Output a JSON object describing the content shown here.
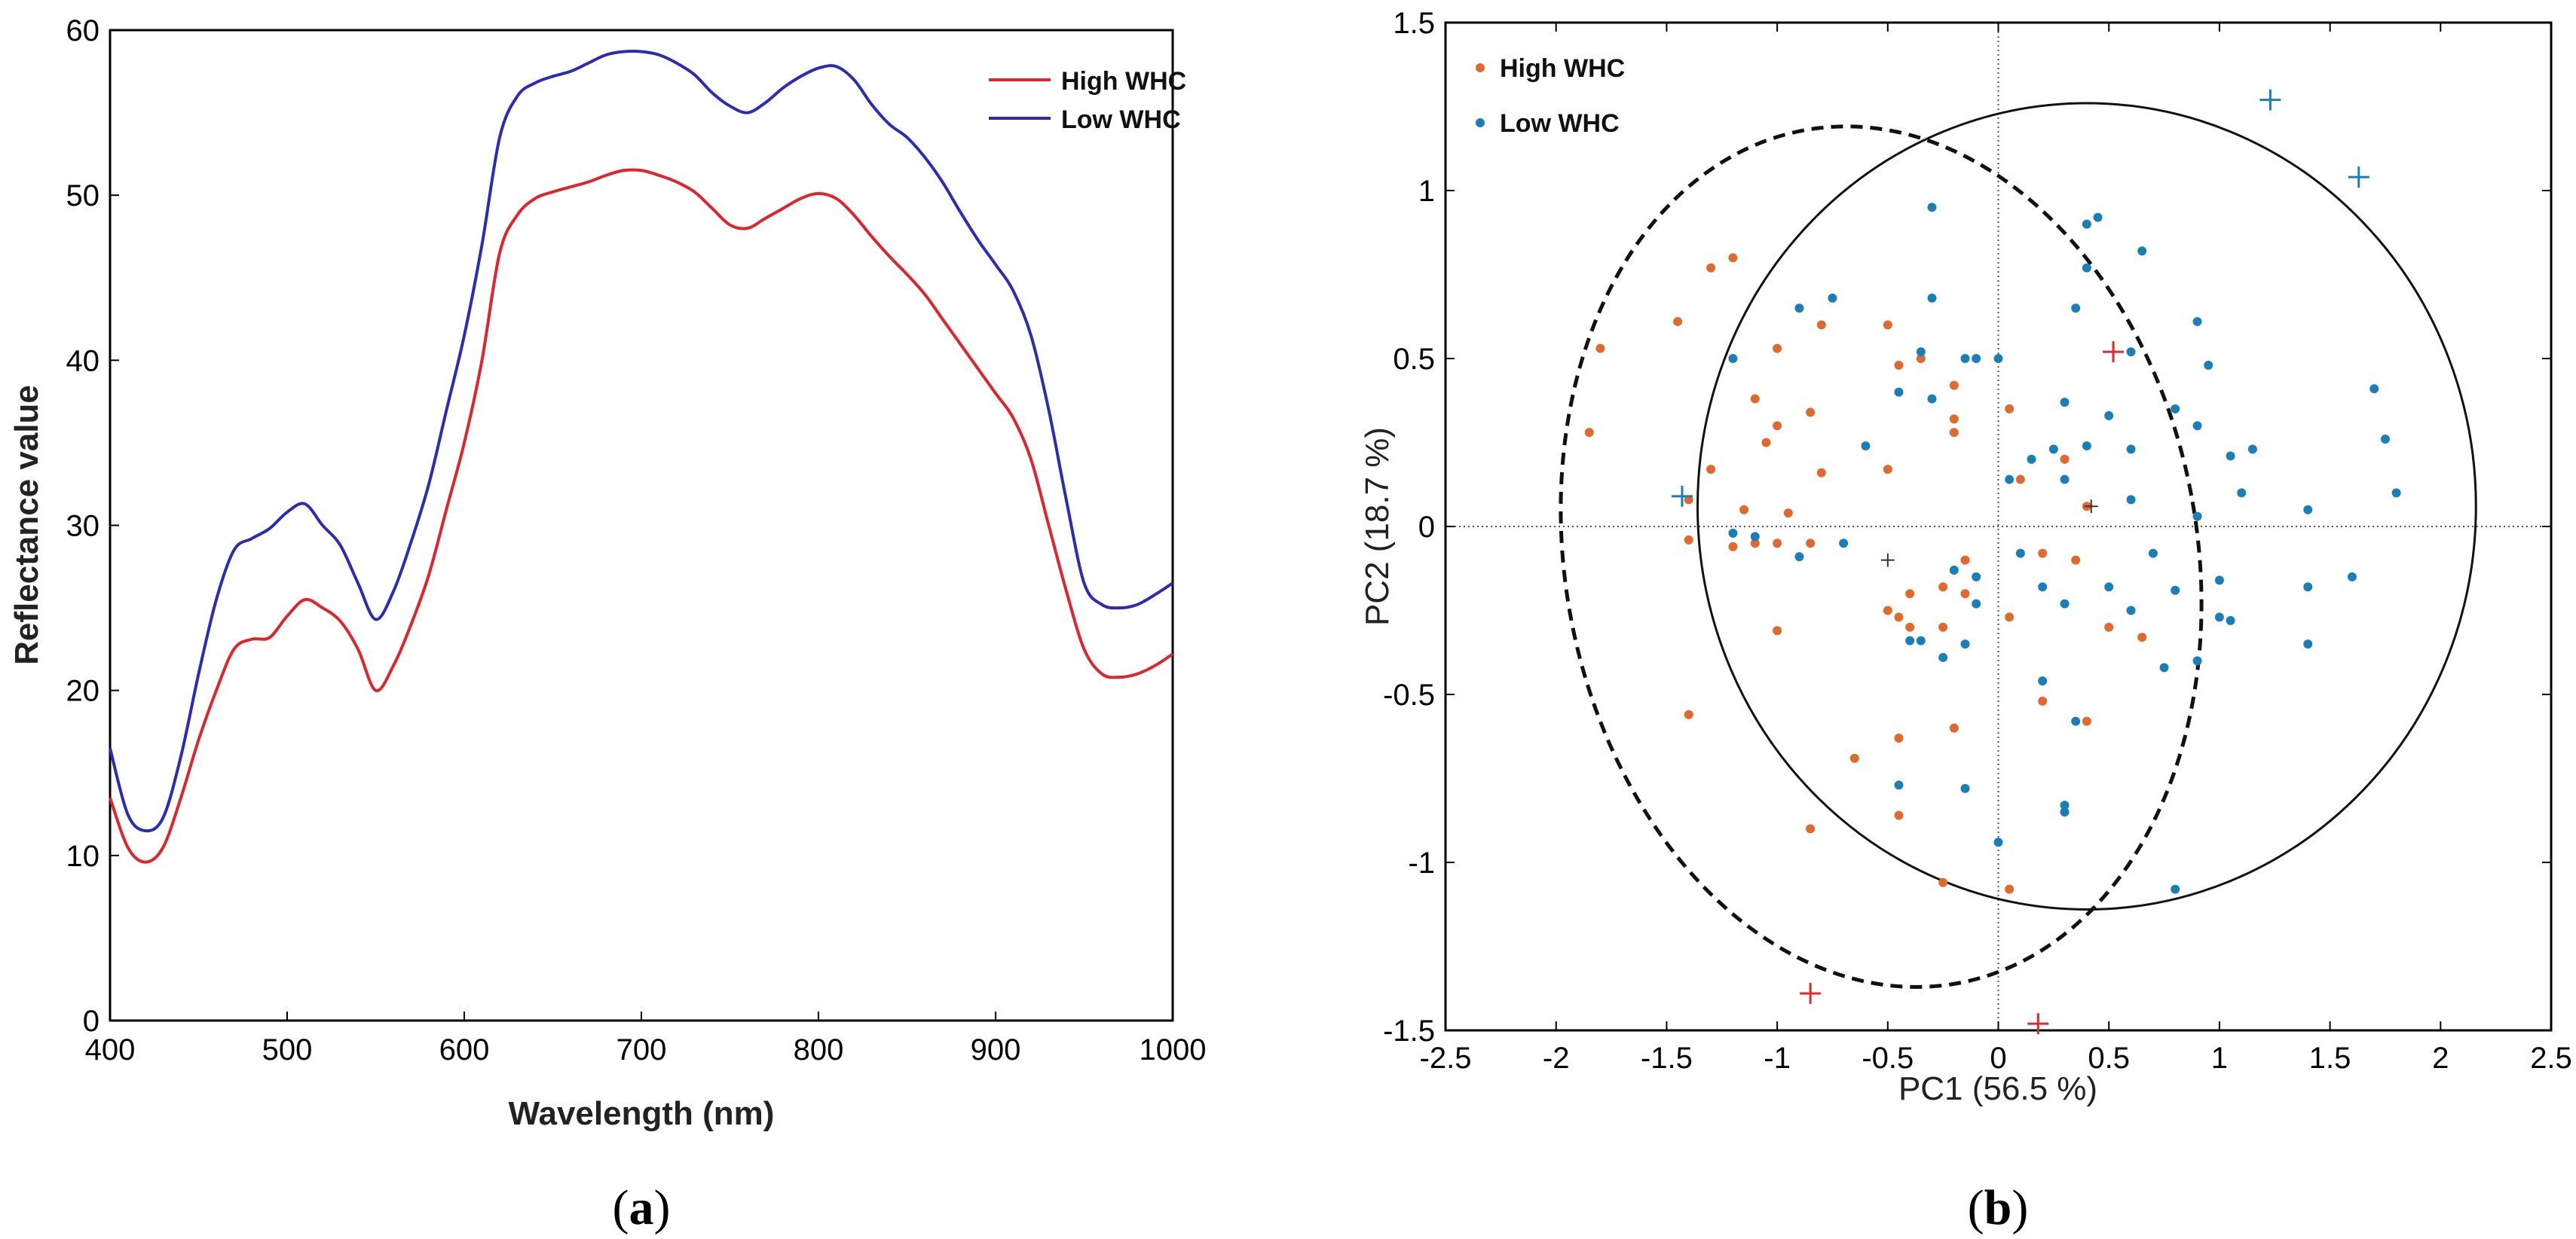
{
  "chart_data": [
    {
      "panel_label": "a",
      "type": "line",
      "title": "",
      "xlabel": "Wavelength (nm)",
      "ylabel": "Reflectance value",
      "xlim": [
        400,
        1000
      ],
      "ylim": [
        0,
        60
      ],
      "xticks": [
        400,
        500,
        600,
        700,
        800,
        900,
        1000
      ],
      "yticks": [
        0,
        10,
        20,
        30,
        40,
        50,
        60
      ],
      "legend": "top-right",
      "series": [
        {
          "name": "High WHC",
          "color": "#e0242b",
          "x": [
            400,
            410,
            420,
            430,
            440,
            450,
            460,
            470,
            480,
            490,
            500,
            510,
            520,
            530,
            540,
            550,
            560,
            570,
            580,
            590,
            600,
            610,
            620,
            630,
            640,
            650,
            660,
            670,
            680,
            690,
            700,
            710,
            720,
            730,
            740,
            750,
            760,
            770,
            780,
            790,
            800,
            810,
            820,
            830,
            840,
            850,
            860,
            870,
            880,
            890,
            900,
            910,
            920,
            930,
            940,
            950,
            960,
            970,
            980,
            990,
            1000
          ],
          "y": [
            13.5,
            10.5,
            9.6,
            10.5,
            13.5,
            17,
            20,
            22.5,
            23.1,
            23.2,
            24.5,
            25.5,
            25.0,
            24.2,
            22.5,
            20.0,
            21.5,
            24.0,
            27.0,
            31.0,
            35.0,
            40.0,
            46.5,
            48.8,
            49.8,
            50.2,
            50.5,
            50.8,
            51.2,
            51.5,
            51.5,
            51.2,
            50.8,
            50.2,
            49.2,
            48.2,
            48.0,
            48.6,
            49.2,
            49.8,
            50.1,
            49.8,
            48.8,
            47.5,
            46.3,
            45.2,
            44.0,
            42.5,
            41.0,
            39.5,
            38.0,
            36.5,
            34.0,
            30.0,
            26.0,
            22.5,
            21.0,
            20.8,
            21.0,
            21.5,
            22.2
          ]
        },
        {
          "name": "Low WHC",
          "color": "#2b2bb8",
          "x": [
            400,
            410,
            420,
            430,
            440,
            450,
            460,
            470,
            480,
            490,
            500,
            510,
            520,
            530,
            540,
            550,
            560,
            570,
            580,
            590,
            600,
            610,
            620,
            630,
            640,
            650,
            660,
            670,
            680,
            690,
            700,
            710,
            720,
            730,
            740,
            750,
            760,
            770,
            780,
            790,
            800,
            810,
            820,
            830,
            840,
            850,
            860,
            870,
            880,
            890,
            900,
            910,
            920,
            930,
            940,
            950,
            960,
            970,
            980,
            990,
            1000
          ],
          "y": [
            16.5,
            12.5,
            11.5,
            12.3,
            16.0,
            21.0,
            25.5,
            28.5,
            29.2,
            29.8,
            30.8,
            31.3,
            30.0,
            28.8,
            26.5,
            24.3,
            26.0,
            29.0,
            32.5,
            37.0,
            41.5,
            47.0,
            53.5,
            56.0,
            56.8,
            57.2,
            57.5,
            58.0,
            58.5,
            58.7,
            58.7,
            58.5,
            58.0,
            57.3,
            56.2,
            55.4,
            55.0,
            55.6,
            56.5,
            57.2,
            57.7,
            57.8,
            57.0,
            55.5,
            54.3,
            53.5,
            52.3,
            50.8,
            49.0,
            47.3,
            45.8,
            44.2,
            41.5,
            37.0,
            31.5,
            26.5,
            25.2,
            25.0,
            25.2,
            25.8,
            26.5
          ]
        }
      ]
    },
    {
      "panel_label": "b",
      "type": "scatter",
      "title": "",
      "xlabel": "PC1 (56.5 %)",
      "ylabel": "PC2 (18.7 %)",
      "xlim": [
        -2.5,
        2.5
      ],
      "ylim": [
        -1.5,
        1.5
      ],
      "xticks": [
        "-2.5",
        "-2",
        "-1.5",
        "-1",
        "-0.5",
        "0",
        "0.5",
        "1",
        "1.5",
        "2",
        "2.5"
      ],
      "yticks": [
        "-1.5",
        "-1",
        "-0.5",
        "0",
        "0.5",
        "1",
        "1.5"
      ],
      "legend": "top-left",
      "series": [
        {
          "name": "High WHC",
          "color": "#e06a2e",
          "points": [
            [
              -1.3,
              0.77
            ],
            [
              -1.2,
              0.8
            ],
            [
              -1.45,
              0.61
            ],
            [
              -1.8,
              0.53
            ],
            [
              -1.85,
              0.28
            ],
            [
              -1.0,
              0.53
            ],
            [
              -0.8,
              0.6
            ],
            [
              -0.85,
              0.34
            ],
            [
              -1.0,
              0.3
            ],
            [
              -1.05,
              0.25
            ],
            [
              -1.1,
              0.38
            ],
            [
              -1.3,
              0.17
            ],
            [
              -1.4,
              0.08
            ],
            [
              -1.15,
              0.05
            ],
            [
              -1.1,
              -0.05
            ],
            [
              -0.95,
              0.04
            ],
            [
              -0.8,
              0.16
            ],
            [
              -0.5,
              0.6
            ],
            [
              -0.45,
              0.48
            ],
            [
              -0.35,
              0.5
            ],
            [
              -0.2,
              0.42
            ],
            [
              -0.2,
              0.28
            ],
            [
              -0.2,
              0.32
            ],
            [
              -0.5,
              0.17
            ],
            [
              0.05,
              0.35
            ],
            [
              0.1,
              0.14
            ],
            [
              0.3,
              0.2
            ],
            [
              0.4,
              0.06
            ],
            [
              -1.4,
              -0.04
            ],
            [
              -1.2,
              -0.06
            ],
            [
              -1.0,
              -0.05
            ],
            [
              -0.85,
              -0.05
            ],
            [
              -0.5,
              -0.25
            ],
            [
              -0.4,
              -0.2
            ],
            [
              -0.4,
              -0.3
            ],
            [
              -0.25,
              -0.3
            ],
            [
              -0.15,
              -0.1
            ],
            [
              -0.15,
              -0.2
            ],
            [
              -0.45,
              -0.27
            ],
            [
              -1.0,
              -0.31
            ],
            [
              -0.25,
              -0.18
            ],
            [
              0.05,
              -0.27
            ],
            [
              0.2,
              -0.08
            ],
            [
              0.35,
              -0.1
            ],
            [
              0.65,
              -0.33
            ],
            [
              0.4,
              -0.58
            ],
            [
              0.2,
              -0.52
            ],
            [
              -0.45,
              -0.63
            ],
            [
              -0.45,
              -0.86
            ],
            [
              -0.2,
              -0.6
            ],
            [
              -0.65,
              -0.69
            ],
            [
              -0.85,
              -0.9
            ],
            [
              -1.4,
              -0.56
            ],
            [
              -0.25,
              -1.06
            ],
            [
              0.05,
              -1.08
            ],
            [
              0.5,
              -0.3
            ]
          ]
        },
        {
          "name": "Low WHC",
          "color": "#1a7fb8",
          "points": [
            [
              -0.3,
              0.95
            ],
            [
              -0.75,
              0.68
            ],
            [
              -0.3,
              0.68
            ],
            [
              -0.9,
              0.65
            ],
            [
              -1.2,
              0.5
            ],
            [
              -0.35,
              0.52
            ],
            [
              -0.3,
              0.38
            ],
            [
              -0.45,
              0.4
            ],
            [
              -0.6,
              0.24
            ],
            [
              -0.15,
              0.5
            ],
            [
              -0.1,
              0.5
            ],
            [
              0.0,
              0.5
            ],
            [
              0.4,
              0.77
            ],
            [
              0.45,
              0.92
            ],
            [
              0.4,
              0.9
            ],
            [
              0.65,
              0.82
            ],
            [
              0.35,
              0.65
            ],
            [
              0.9,
              0.61
            ],
            [
              0.95,
              0.48
            ],
            [
              0.6,
              0.52
            ],
            [
              0.5,
              0.33
            ],
            [
              0.3,
              0.37
            ],
            [
              0.25,
              0.23
            ],
            [
              0.15,
              0.2
            ],
            [
              0.4,
              0.24
            ],
            [
              0.6,
              0.23
            ],
            [
              0.8,
              0.35
            ],
            [
              0.9,
              0.3
            ],
            [
              1.05,
              0.21
            ],
            [
              1.15,
              0.23
            ],
            [
              1.1,
              0.1
            ],
            [
              1.4,
              0.05
            ],
            [
              1.7,
              0.41
            ],
            [
              1.75,
              0.26
            ],
            [
              1.8,
              0.1
            ],
            [
              0.05,
              0.14
            ],
            [
              0.3,
              0.14
            ],
            [
              0.6,
              0.08
            ],
            [
              0.9,
              0.03
            ],
            [
              -1.2,
              -0.02
            ],
            [
              -1.1,
              -0.03
            ],
            [
              -0.9,
              -0.09
            ],
            [
              -0.7,
              -0.05
            ],
            [
              -0.2,
              -0.13
            ],
            [
              -0.1,
              -0.15
            ],
            [
              -0.1,
              -0.23
            ],
            [
              0.1,
              -0.08
            ],
            [
              0.2,
              -0.18
            ],
            [
              0.3,
              -0.23
            ],
            [
              0.5,
              -0.18
            ],
            [
              0.6,
              -0.25
            ],
            [
              0.7,
              -0.08
            ],
            [
              0.8,
              -0.19
            ],
            [
              1.0,
              -0.16
            ],
            [
              1.0,
              -0.27
            ],
            [
              1.05,
              -0.28
            ],
            [
              1.4,
              -0.18
            ],
            [
              1.6,
              -0.15
            ],
            [
              -0.4,
              -0.34
            ],
            [
              -0.35,
              -0.34
            ],
            [
              -0.25,
              -0.39
            ],
            [
              -0.15,
              -0.35
            ],
            [
              0.75,
              -0.42
            ],
            [
              0.9,
              -0.4
            ],
            [
              1.4,
              -0.35
            ],
            [
              0.2,
              -0.46
            ],
            [
              -0.45,
              -0.77
            ],
            [
              -0.15,
              -0.78
            ],
            [
              0.3,
              -0.85
            ],
            [
              0.35,
              -0.58
            ],
            [
              0.0,
              -0.94
            ],
            [
              0.8,
              -1.08
            ],
            [
              0.3,
              -0.83
            ]
          ]
        }
      ],
      "centroids": [
        {
          "series": "High WHC",
          "x": -0.5,
          "y": -0.1,
          "color": "#333333"
        },
        {
          "series": "Low WHC",
          "x": 0.42,
          "y": 0.06,
          "color": "#333333"
        }
      ],
      "outliers": [
        {
          "series": "High WHC",
          "color": "#e02a2a",
          "points": [
            [
              0.52,
              0.52
            ],
            [
              -0.85,
              -1.39
            ],
            [
              0.18,
              -1.48
            ]
          ]
        },
        {
          "series": "Low WHC",
          "color": "#1a7fb8",
          "points": [
            [
              -1.43,
              0.09
            ],
            [
              1.23,
              1.27
            ],
            [
              1.63,
              1.04
            ]
          ]
        }
      ],
      "ellipses": [
        {
          "series": "High WHC",
          "style": "dashed",
          "cx": -0.53,
          "cy": -0.09,
          "rx": 1.43,
          "ry": 1.29,
          "rotation_deg": -10
        },
        {
          "series": "Low WHC",
          "style": "solid",
          "cx": 0.4,
          "cy": 0.06,
          "rx": 1.76,
          "ry": 1.2,
          "rotation_deg": 0
        }
      ]
    }
  ]
}
